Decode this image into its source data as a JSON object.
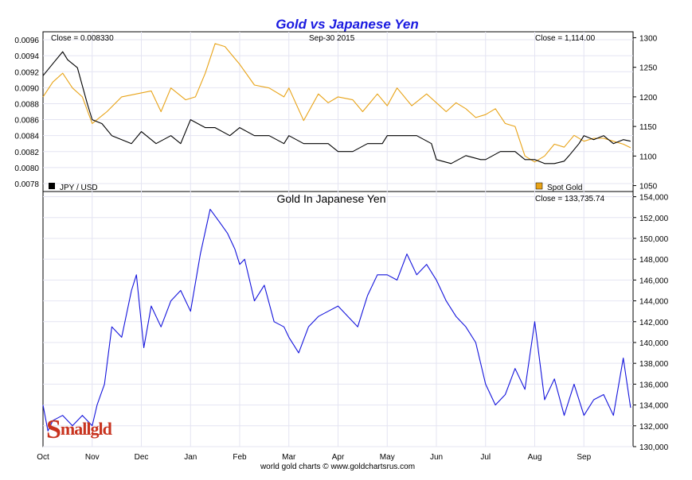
{
  "title": "Gold vs Japanese Yen",
  "footer": "world gold charts © www.goldchartsrus.com",
  "watermark_logo": "Smallgold",
  "colors": {
    "jpy": "#000000",
    "gold": "#e8a317",
    "gold_in_yen": "#1414dc",
    "title": "#1a1ae0",
    "grid": "#e4e4f2"
  },
  "top_panel": {
    "close_left": "Close = 0.008330",
    "date": "Sep-30  2015",
    "close_right": "Close = 1,114.00",
    "legend_left": "JPY / USD",
    "legend_right": "Spot Gold"
  },
  "bottom_panel": {
    "subtitle": "Gold In Japanese Yen",
    "close_right": "Close = 133,735.74"
  },
  "chart_data": [
    {
      "type": "line",
      "panel": "top",
      "x_labels": [
        "Oct",
        "Nov",
        "Dec",
        "Jan",
        "Feb",
        "Mar",
        "Apr",
        "May",
        "Jun",
        "Jul",
        "Aug",
        "Sep"
      ],
      "left_axis_ticks": [
        "0.0096",
        "0.0094",
        "0.0092",
        "0.0090",
        "0.0088",
        "0.0086",
        "0.0084",
        "0.0082",
        "0.0080",
        "0.0078"
      ],
      "right_axis_ticks": [
        "1300",
        "1250",
        "1200",
        "1150",
        "1100",
        "1050"
      ],
      "left_ylim": [
        0.0077,
        0.0097
      ],
      "right_ylim": [
        1040,
        1310
      ],
      "series": [
        {
          "name": "JPY / USD",
          "axis": "left",
          "color": "#000000",
          "x": [
            0,
            0.2,
            0.4,
            0.5,
            0.7,
            0.9,
            1.0,
            1.2,
            1.4,
            1.6,
            1.8,
            2.0,
            2.3,
            2.6,
            2.8,
            3.0,
            3.3,
            3.5,
            3.8,
            4.0,
            4.3,
            4.6,
            4.9,
            5.0,
            5.3,
            5.6,
            5.8,
            6.0,
            6.3,
            6.6,
            6.9,
            7.0,
            7.3,
            7.6,
            7.9,
            8.0,
            8.3,
            8.6,
            8.9,
            9.0,
            9.3,
            9.6,
            9.8,
            10.0,
            10.2,
            10.4,
            10.6,
            10.7,
            10.9,
            11.0,
            11.2,
            11.4,
            11.6,
            11.8,
            11.95
          ],
          "values": [
            0.00915,
            0.0093,
            0.00945,
            0.00935,
            0.00925,
            0.0088,
            0.0086,
            0.00855,
            0.0084,
            0.00835,
            0.0083,
            0.00845,
            0.0083,
            0.0084,
            0.0083,
            0.0086,
            0.0085,
            0.0085,
            0.0084,
            0.0085,
            0.0084,
            0.0084,
            0.0083,
            0.0084,
            0.0083,
            0.0083,
            0.0083,
            0.0082,
            0.0082,
            0.0083,
            0.0083,
            0.0084,
            0.0084,
            0.0084,
            0.0083,
            0.0081,
            0.00805,
            0.00815,
            0.0081,
            0.0081,
            0.0082,
            0.0082,
            0.0081,
            0.0081,
            0.00805,
            0.00805,
            0.00808,
            0.00815,
            0.0083,
            0.0084,
            0.00835,
            0.0084,
            0.0083,
            0.00835,
            0.00833
          ]
        },
        {
          "name": "Spot Gold",
          "axis": "right",
          "color": "#e8a317",
          "x": [
            0,
            0.2,
            0.4,
            0.6,
            0.8,
            1.0,
            1.3,
            1.6,
            1.9,
            2.2,
            2.4,
            2.6,
            2.9,
            3.1,
            3.3,
            3.5,
            3.7,
            3.9,
            4.0,
            4.3,
            4.6,
            4.9,
            5.0,
            5.3,
            5.6,
            5.8,
            6.0,
            6.3,
            6.5,
            6.8,
            7.0,
            7.2,
            7.5,
            7.8,
            8.0,
            8.2,
            8.4,
            8.6,
            8.8,
            9.0,
            9.2,
            9.4,
            9.6,
            9.8,
            10.0,
            10.2,
            10.4,
            10.6,
            10.8,
            11.0,
            11.2,
            11.4,
            11.6,
            11.8,
            11.95
          ],
          "values": [
            1200,
            1225,
            1240,
            1215,
            1200,
            1155,
            1175,
            1200,
            1205,
            1210,
            1175,
            1215,
            1195,
            1200,
            1240,
            1290,
            1285,
            1265,
            1255,
            1220,
            1215,
            1200,
            1215,
            1160,
            1205,
            1190,
            1200,
            1195,
            1175,
            1205,
            1185,
            1215,
            1185,
            1205,
            1190,
            1175,
            1190,
            1180,
            1165,
            1170,
            1180,
            1155,
            1150,
            1100,
            1090,
            1100,
            1120,
            1115,
            1135,
            1125,
            1130,
            1130,
            1125,
            1120,
            1114
          ]
        }
      ]
    },
    {
      "type": "line",
      "panel": "bottom",
      "title": "Gold In Japanese Yen",
      "x_labels": [
        "Oct",
        "Nov",
        "Dec",
        "Jan",
        "Feb",
        "Mar",
        "Apr",
        "May",
        "Jun",
        "Jul",
        "Aug",
        "Sep"
      ],
      "y_ticks": [
        "154,000",
        "152,000",
        "150,000",
        "148,000",
        "146,000",
        "144,000",
        "142,000",
        "140,000",
        "138,000",
        "136,000",
        "134,000",
        "132,000",
        "130,000"
      ],
      "ylim": [
        130000,
        154500
      ],
      "series": [
        {
          "name": "Gold In Japanese Yen",
          "color": "#1414dc",
          "x": [
            0,
            0.1,
            0.2,
            0.4,
            0.6,
            0.8,
            1.0,
            1.1,
            1.25,
            1.4,
            1.6,
            1.8,
            1.9,
            2.05,
            2.2,
            2.4,
            2.6,
            2.8,
            3.0,
            3.2,
            3.4,
            3.6,
            3.75,
            3.9,
            4.0,
            4.1,
            4.2,
            4.3,
            4.5,
            4.7,
            4.9,
            5.0,
            5.2,
            5.4,
            5.6,
            5.8,
            6.0,
            6.2,
            6.4,
            6.6,
            6.8,
            7.0,
            7.2,
            7.4,
            7.6,
            7.8,
            8.0,
            8.2,
            8.4,
            8.6,
            8.8,
            9.0,
            9.2,
            9.4,
            9.6,
            9.8,
            10.0,
            10.2,
            10.4,
            10.6,
            10.8,
            11.0,
            11.2,
            11.4,
            11.6,
            11.8,
            11.95
          ],
          "values": [
            134000,
            131500,
            132500,
            133000,
            132000,
            133000,
            132000,
            134000,
            136000,
            141500,
            140500,
            145000,
            146500,
            139500,
            143500,
            141500,
            144000,
            145000,
            143000,
            148500,
            152800,
            151500,
            150500,
            149000,
            147500,
            148000,
            146000,
            144000,
            145500,
            142000,
            141500,
            140500,
            139000,
            141500,
            142500,
            143000,
            143500,
            142500,
            141500,
            144500,
            146500,
            146500,
            146000,
            148500,
            146500,
            147500,
            146000,
            144000,
            142500,
            141500,
            140000,
            136000,
            134000,
            135000,
            137500,
            135500,
            142000,
            134500,
            136500,
            133000,
            136000,
            133000,
            134500,
            135000,
            133000,
            138500,
            133736
          ]
        }
      ]
    }
  ]
}
